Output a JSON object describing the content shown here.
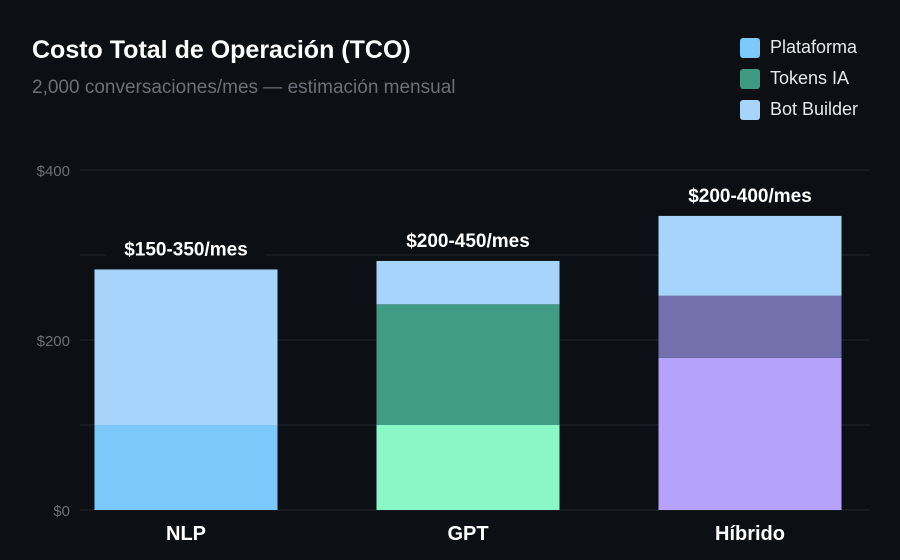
{
  "chart_data": {
    "type": "bar",
    "stacked": true,
    "title": "Costo Total de Operación (TCO)",
    "subtitle": "2,000 conversaciones/mes — estimación mensual",
    "categories": [
      "NLP",
      "GPT",
      "Híbrido"
    ],
    "series": [
      {
        "name": "Plataforma",
        "values": [
          100,
          100,
          179
        ],
        "color": "#7cc8fb",
        "bar_colors": [
          "#7cc8fb",
          "#8af7c6",
          "#b5a3fb"
        ]
      },
      {
        "name": "Tokens IA",
        "values": [
          0,
          142,
          73
        ],
        "color": "#3f9a84",
        "bar_colors": [
          "#3f9a84",
          "#419c86",
          "#7370ad"
        ]
      },
      {
        "name": "Bot Builder",
        "values": [
          183,
          51,
          94
        ],
        "color": "#a6d4fb",
        "bar_colors": [
          "#a6d4fb",
          "#a6d4fb",
          "#a6d4fb"
        ]
      }
    ],
    "data_labels": [
      "$150-350/mes",
      "$200-450/mes",
      "$200-400/mes"
    ],
    "ylim": [
      0,
      400
    ],
    "y_ticks": [
      0,
      100,
      200,
      300,
      400
    ],
    "y_tick_labels": [
      "$0",
      "",
      "$200",
      "",
      "$400"
    ],
    "grid": true,
    "legend_position": "top-right",
    "xlabel": "",
    "ylabel": ""
  }
}
